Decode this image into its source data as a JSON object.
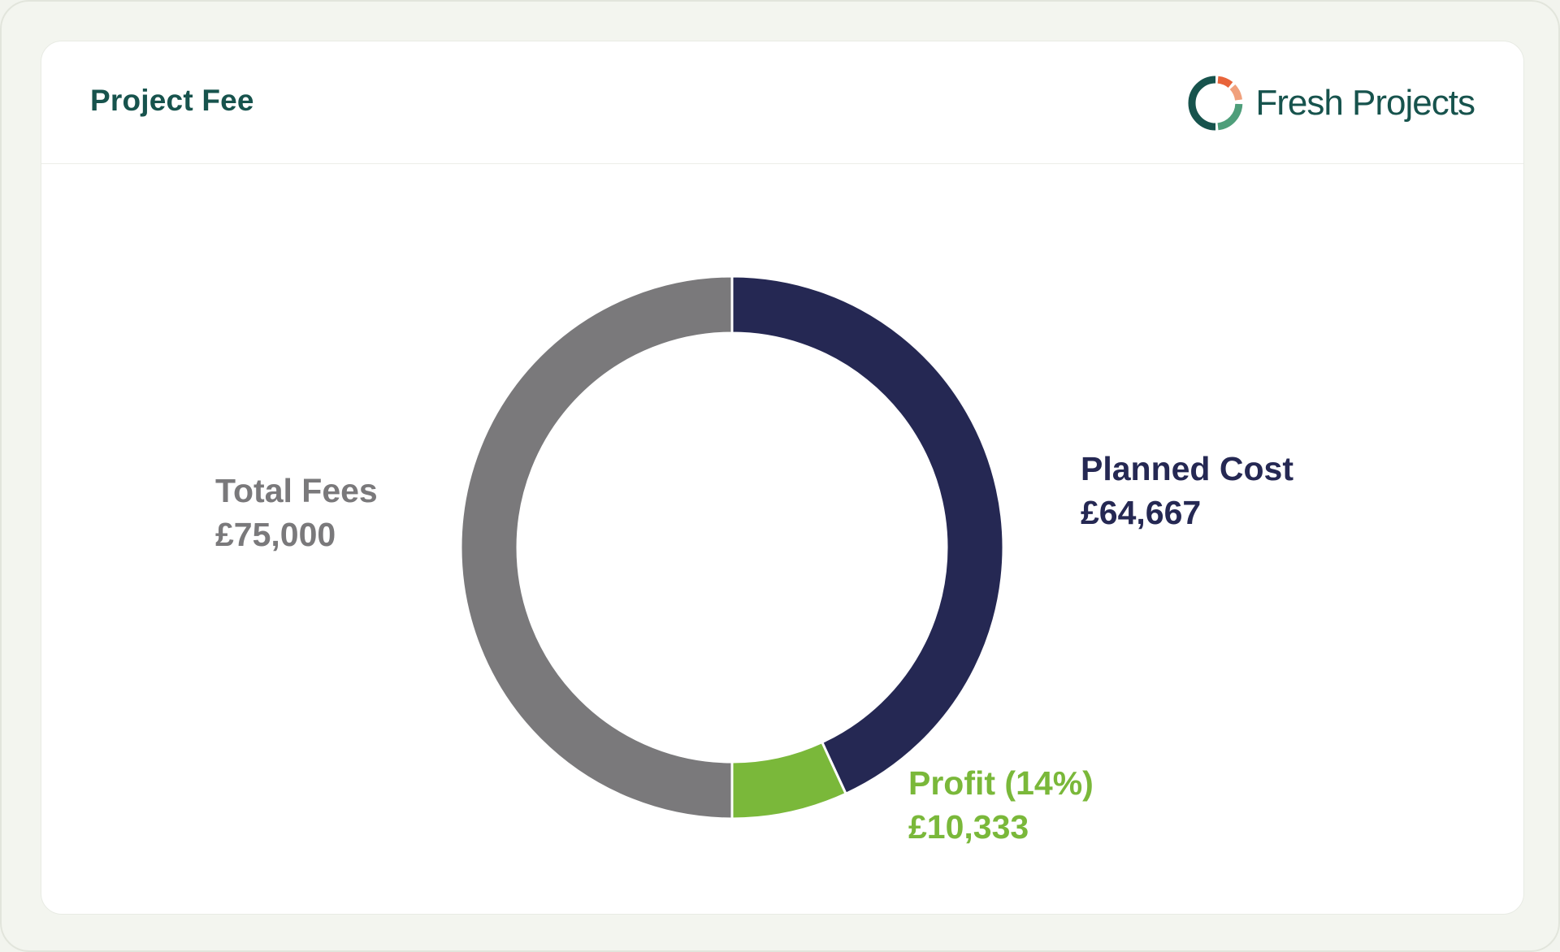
{
  "header": {
    "title": "Project Fee",
    "brand_name": "Fresh Projects",
    "brand_logo_icon": "fresh-projects-ring-logo"
  },
  "colors": {
    "total_fees": "#7a797b",
    "planned_cost": "#252853",
    "profit": "#7ab83a",
    "title": "#17534d",
    "logo_dark": "#17534d",
    "logo_orange": "#e8643a",
    "logo_peach": "#f0a07c",
    "logo_green": "#4e9e7a"
  },
  "labels": {
    "total_fees": {
      "name": "Total Fees",
      "value": "£75,000"
    },
    "planned_cost": {
      "name": "Planned Cost",
      "value": "£64,667"
    },
    "profit": {
      "name": "Profit (14%)",
      "value": "£10,333"
    }
  },
  "chart_data": {
    "type": "pie",
    "variant": "donut",
    "slices": [
      {
        "label": "Planned Cost",
        "value": 64667,
        "color": "#252853"
      },
      {
        "label": "Profit (14%)",
        "value": 10333,
        "color": "#7ab83a"
      },
      {
        "label": "Total Fees",
        "value": 75000,
        "color": "#7a797b"
      }
    ],
    "start": "top",
    "direction": "clockwise",
    "legend": "none"
  }
}
